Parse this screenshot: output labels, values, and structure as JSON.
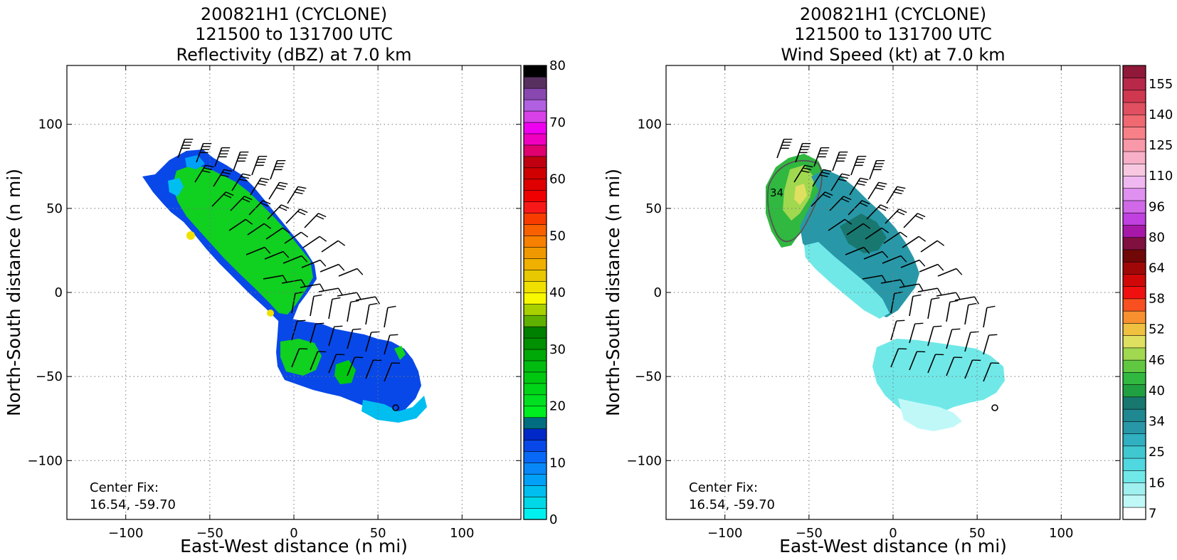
{
  "panels": [
    {
      "title_lines": [
        "200821H1 (CYCLONE)",
        "121500 to 131700 UTC",
        "Reflectivity (dBZ) at 7.0 km"
      ],
      "xlabel": "East-West distance (n mi)",
      "ylabel": "North-South distance (n mi)",
      "center_fix_label": "Center Fix:",
      "center_fix_value": "16.54, -59.70",
      "colorbar_ticks": [
        "0",
        "10",
        "20",
        "30",
        "40",
        "50",
        "60",
        "70",
        "80"
      ]
    },
    {
      "title_lines": [
        "200821H1 (CYCLONE)",
        "121500 to 131700 UTC",
        "Wind Speed (kt) at 7.0 km"
      ],
      "xlabel": "East-West distance (n mi)",
      "ylabel": "North-South distance (n mi)",
      "center_fix_label": "Center Fix:",
      "center_fix_value": "16.54, -59.70",
      "colorbar_ticks": [
        "7",
        "16",
        "25",
        "34",
        "40",
        "46",
        "52",
        "58",
        "64",
        "80",
        "96",
        "110",
        "125",
        "140",
        "155"
      ],
      "contour_label": "34"
    }
  ],
  "chart_data": [
    {
      "type": "heatmap",
      "title": "200821H1 (CYCLONE) 121500 to 131700 UTC Reflectivity (dBZ) at 7.0 km",
      "xlabel": "East-West distance (n mi)",
      "ylabel": "North-South distance (n mi)",
      "xlim": [
        -135,
        135
      ],
      "ylim": [
        -135,
        135
      ],
      "xticks": [
        -100,
        -50,
        0,
        50,
        100
      ],
      "yticks": [
        -100,
        -50,
        0,
        50,
        100
      ],
      "grid": true,
      "colorbar": {
        "min": 0,
        "max": 80,
        "ticks": [
          0,
          10,
          20,
          30,
          40,
          50,
          60,
          70,
          80
        ],
        "colors": [
          "#00f0f0",
          "#00d8e8",
          "#00bef0",
          "#00a0f8",
          "#0888f8",
          "#0868f8",
          "#0848e8",
          "#0028c8",
          "#006e80",
          "#00ee20",
          "#00e020",
          "#00d418",
          "#00c810",
          "#00bc10",
          "#00a808",
          "#009000",
          "#008000",
          "#60b000",
          "#a8d000",
          "#f8f800",
          "#f0e000",
          "#e8c800",
          "#f0b000",
          "#f09800",
          "#f88000",
          "#f86000",
          "#f83c00",
          "#f81818",
          "#f00000",
          "#e00000",
          "#d00000",
          "#c00010",
          "#e00070",
          "#f000c0",
          "#f000f0",
          "#d840e8",
          "#b060e0",
          "#8848b0",
          "#583060",
          "#000000"
        ]
      },
      "regions": [
        {
          "name": "main band",
          "value_range": [
            18,
            24
          ],
          "from": [
            -72,
            65
          ],
          "to": [
            18,
            3
          ]
        },
        {
          "name": "outer band",
          "value_range": [
            8,
            22
          ],
          "from": [
            -5,
            -35
          ],
          "to": [
            75,
            -75
          ]
        },
        {
          "name": "yellow cores",
          "value": 36,
          "points": [
            [
              -60,
              35
            ],
            [
              -14,
              -12
            ]
          ]
        }
      ],
      "center_fix": [
        16.54,
        -59.7
      ]
    },
    {
      "type": "heatmap",
      "title": "200821H1 (CYCLONE) 121500 to 131700 UTC Wind Speed (kt) at 7.0 km",
      "xlabel": "East-West distance (n mi)",
      "ylabel": "North-South distance (n mi)",
      "xlim": [
        -135,
        135
      ],
      "ylim": [
        -135,
        135
      ],
      "xticks": [
        -100,
        -50,
        0,
        50,
        100
      ],
      "yticks": [
        -100,
        -50,
        0,
        50,
        100
      ],
      "grid": true,
      "colorbar": {
        "ticks": [
          7,
          16,
          25,
          34,
          40,
          46,
          52,
          58,
          64,
          80,
          96,
          110,
          125,
          140,
          155
        ],
        "colors": [
          "#ffffff",
          "#c0f8f8",
          "#a0f0f0",
          "#70e8e8",
          "#50d8e0",
          "#40c8d0",
          "#30b0c0",
          "#2898a8",
          "#208890",
          "#187870",
          "#20a040",
          "#30b840",
          "#60c840",
          "#a0d850",
          "#e0e060",
          "#f0c040",
          "#f89030",
          "#f85020",
          "#f01010",
          "#d00808",
          "#a00808",
          "#700808",
          "#801040",
          "#a818a8",
          "#c040e0",
          "#d068e8",
          "#e090f0",
          "#f0b8f0",
          "#f8c8e0",
          "#f8b0c8",
          "#f898a8",
          "#f88088",
          "#f06870",
          "#e05060",
          "#d03850",
          "#b82848",
          "#901838"
        ]
      },
      "regions": [
        {
          "name": "northwest core",
          "value_range": [
            30,
            42
          ],
          "from": [
            -75,
            80
          ],
          "to": [
            -55,
            30
          ]
        },
        {
          "name": "main band",
          "value_range": [
            10,
            28
          ],
          "from": [
            -50,
            65
          ],
          "to": [
            18,
            -10
          ]
        },
        {
          "name": "outer band",
          "value_range": [
            7,
            16
          ],
          "from": [
            -5,
            -30
          ],
          "to": [
            70,
            -75
          ]
        }
      ],
      "contour_34kt": true,
      "center_fix": [
        16.54,
        -59.7
      ]
    }
  ]
}
